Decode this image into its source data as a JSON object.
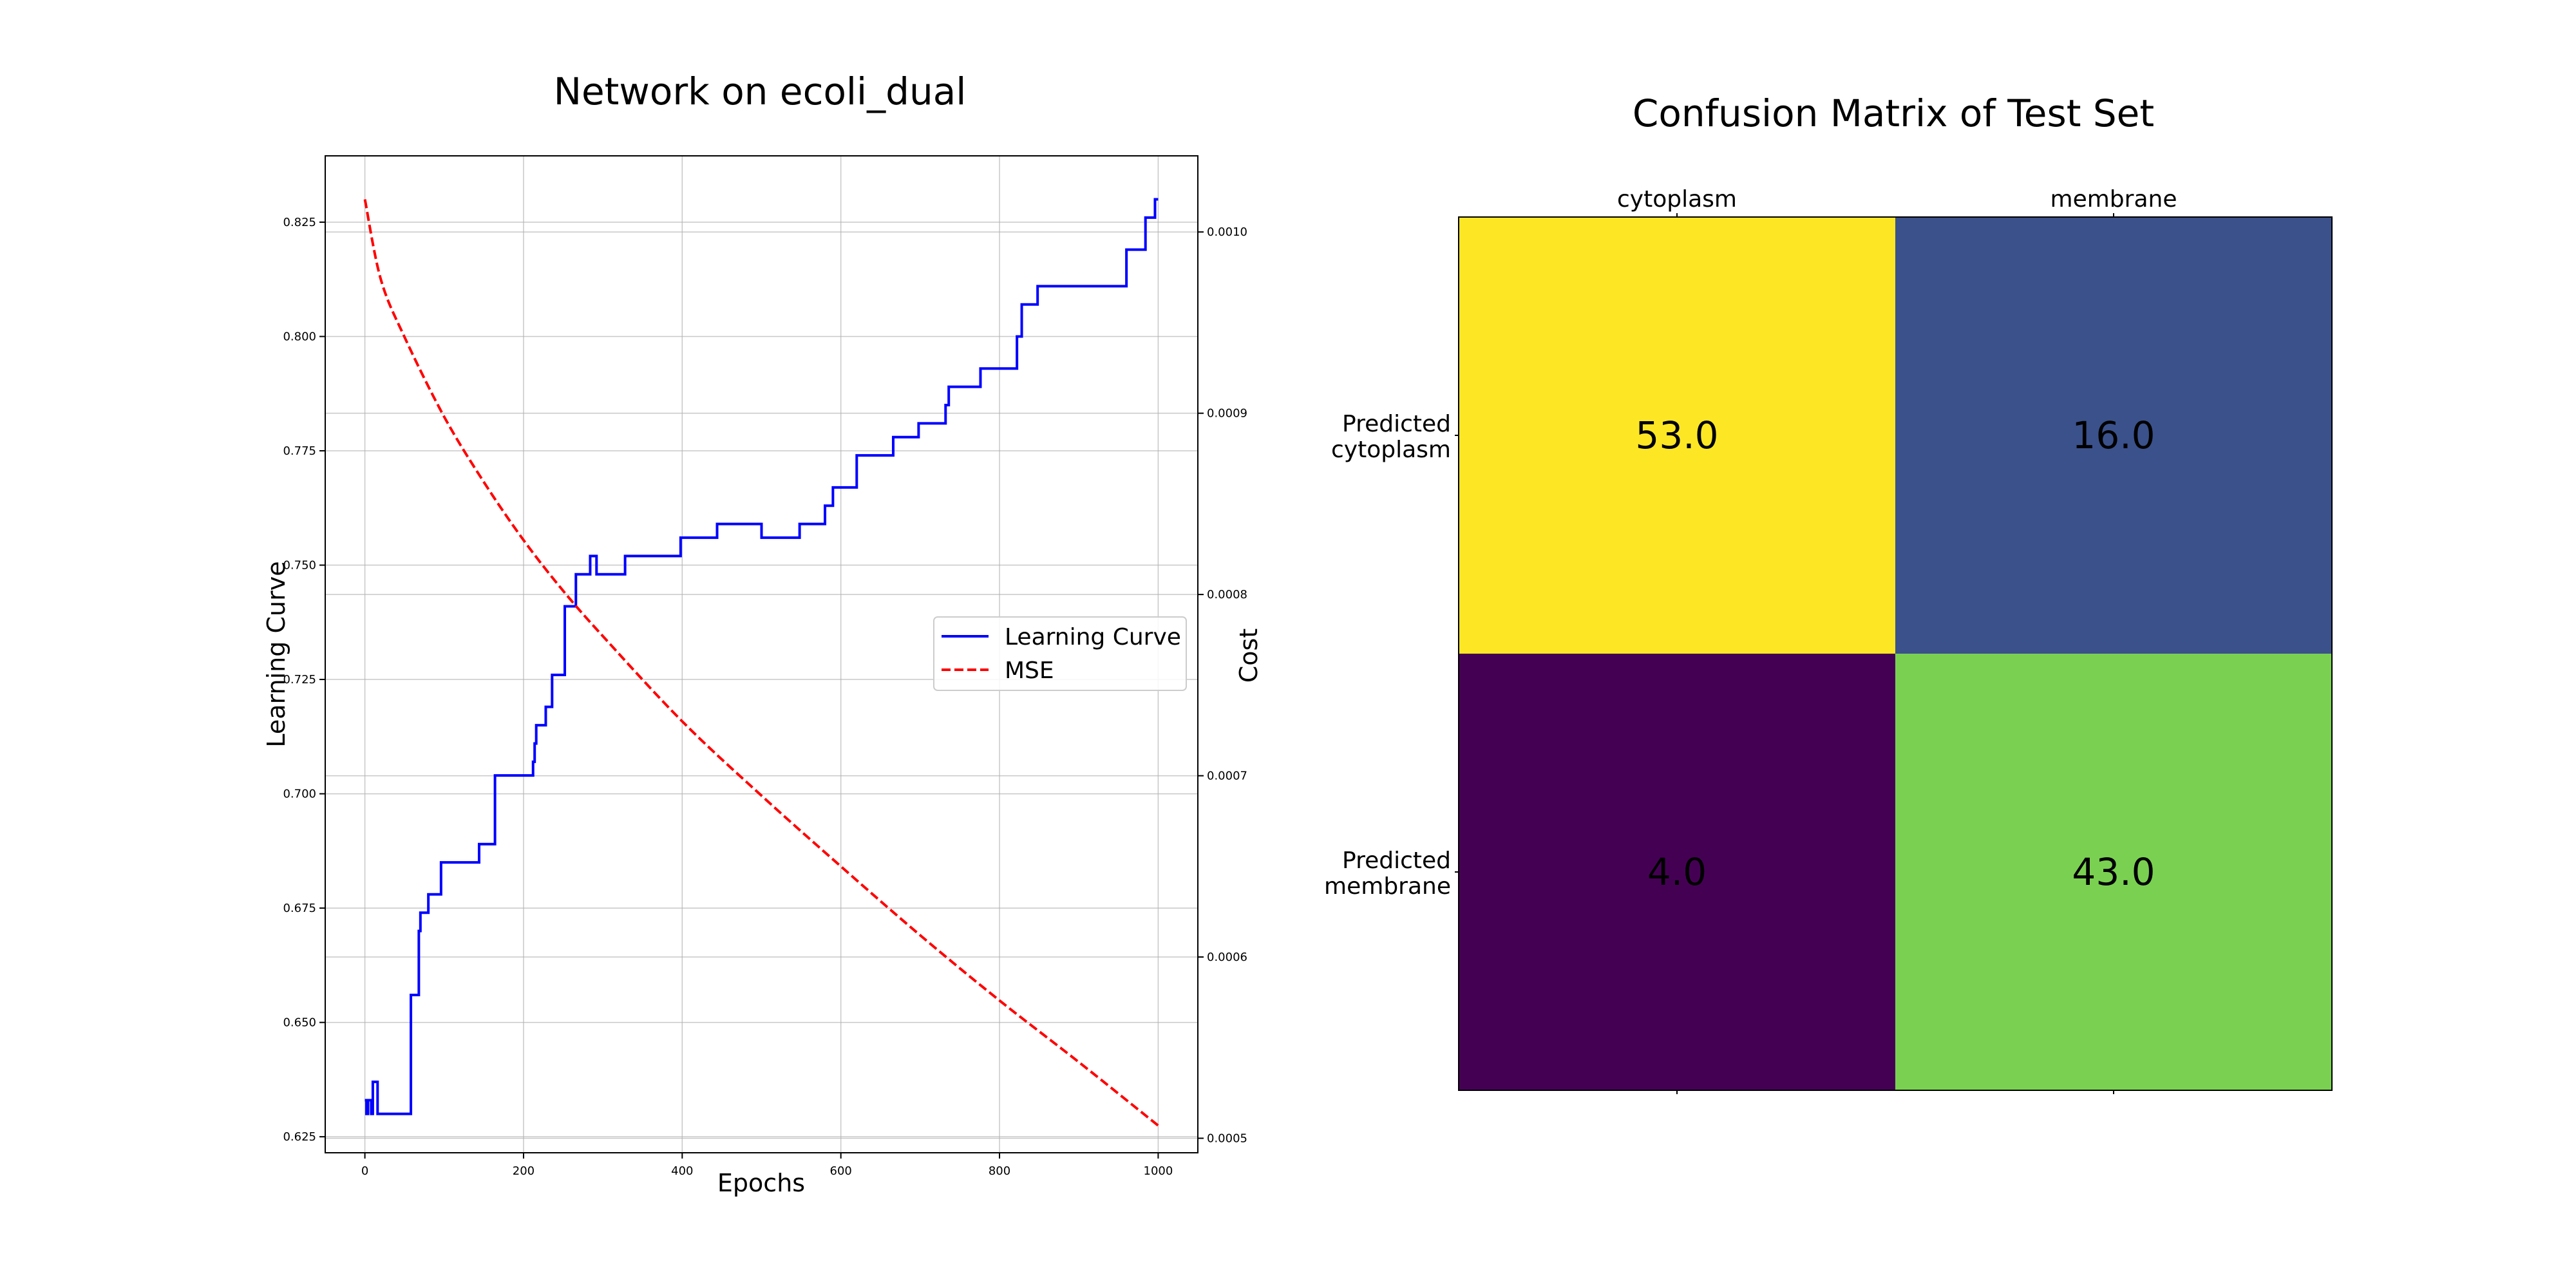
{
  "chart_data": [
    {
      "type": "line",
      "title": "Network on ecoli_dual",
      "xlabel": "Epochs",
      "ylabel": "Learning Curve",
      "y2label": "Cost",
      "xlim": [
        -50,
        1050
      ],
      "ylim": [
        0.6215,
        0.8395
      ],
      "y2lim": [
        0.000492,
        0.001042
      ],
      "xticks": [
        0,
        200,
        400,
        600,
        800,
        1000
      ],
      "yticks": [
        0.625,
        0.65,
        0.675,
        0.7,
        0.725,
        0.75,
        0.775,
        0.8,
        0.825
      ],
      "ytick_labels": [
        "0.625",
        "0.650",
        "0.675",
        "0.700",
        "0.725",
        "0.750",
        "0.775",
        "0.800",
        "0.825"
      ],
      "y2ticks": [
        0.0005,
        0.0006,
        0.0007,
        0.0008,
        0.0009,
        0.001
      ],
      "y2tick_labels": [
        "0.0005",
        "0.0006",
        "0.0007",
        "0.0008",
        "0.0009",
        "0.0010"
      ],
      "grid": true,
      "legend": "center-right",
      "series": [
        {
          "name": "Learning Curve",
          "axis": "left",
          "color": "#0000ff",
          "style": "solid",
          "step": true,
          "points": [
            [
              0,
              0.633
            ],
            [
              2,
              0.63
            ],
            [
              4,
              0.633
            ],
            [
              8,
              0.63
            ],
            [
              10,
              0.637
            ],
            [
              14,
              0.637
            ],
            [
              16,
              0.63
            ],
            [
              56,
              0.63
            ],
            [
              58,
              0.656
            ],
            [
              66,
              0.656
            ],
            [
              68,
              0.67
            ],
            [
              70,
              0.674
            ],
            [
              78,
              0.674
            ],
            [
              80,
              0.678
            ],
            [
              94,
              0.678
            ],
            [
              96,
              0.685
            ],
            [
              142,
              0.685
            ],
            [
              144,
              0.689
            ],
            [
              162,
              0.689
            ],
            [
              164,
              0.704
            ],
            [
              210,
              0.704
            ],
            [
              212,
              0.707
            ],
            [
              214,
              0.711
            ],
            [
              216,
              0.715
            ],
            [
              226,
              0.715
            ],
            [
              228,
              0.719
            ],
            [
              234,
              0.719
            ],
            [
              236,
              0.726
            ],
            [
              250,
              0.726
            ],
            [
              252,
              0.741
            ],
            [
              264,
              0.741
            ],
            [
              266,
              0.748
            ],
            [
              282,
              0.748
            ],
            [
              284,
              0.752
            ],
            [
              290,
              0.752
            ],
            [
              292,
              0.748
            ],
            [
              326,
              0.748
            ],
            [
              328,
              0.752
            ],
            [
              396,
              0.752
            ],
            [
              398,
              0.756
            ],
            [
              442,
              0.756
            ],
            [
              444,
              0.759
            ],
            [
              498,
              0.759
            ],
            [
              500,
              0.756
            ],
            [
              546,
              0.756
            ],
            [
              548,
              0.759
            ],
            [
              578,
              0.759
            ],
            [
              580,
              0.763
            ],
            [
              588,
              0.763
            ],
            [
              590,
              0.767
            ],
            [
              618,
              0.767
            ],
            [
              620,
              0.774
            ],
            [
              664,
              0.774
            ],
            [
              666,
              0.778
            ],
            [
              696,
              0.778
            ],
            [
              698,
              0.781
            ],
            [
              730,
              0.781
            ],
            [
              732,
              0.785
            ],
            [
              734,
              0.785
            ],
            [
              736,
              0.789
            ],
            [
              774,
              0.789
            ],
            [
              776,
              0.793
            ],
            [
              820,
              0.793
            ],
            [
              822,
              0.8
            ],
            [
              826,
              0.8
            ],
            [
              828,
              0.807
            ],
            [
              846,
              0.807
            ],
            [
              848,
              0.811
            ],
            [
              958,
              0.811
            ],
            [
              960,
              0.819
            ],
            [
              982,
              0.819
            ],
            [
              984,
              0.826
            ],
            [
              994,
              0.826
            ],
            [
              996,
              0.83
            ],
            [
              1000,
              0.83
            ]
          ]
        },
        {
          "name": "MSE",
          "axis": "right",
          "color": "#ff0000",
          "style": "dashed",
          "points": [
            [
              0,
              0.001018
            ],
            [
              20,
              0.000974
            ],
            [
              50,
              0.000942
            ],
            [
              100,
              0.000898
            ],
            [
              150,
              0.000862
            ],
            [
              200,
              0.00083
            ],
            [
              250,
              0.000802
            ],
            [
              300,
              0.000777
            ],
            [
              400,
              0.00073
            ],
            [
              500,
              0.000689
            ],
            [
              600,
              0.00065
            ],
            [
              700,
              0.000612
            ],
            [
              800,
              0.000576
            ],
            [
              900,
              0.000542
            ],
            [
              1000,
              0.000507
            ]
          ]
        }
      ]
    },
    {
      "type": "heatmap",
      "title": "Confusion Matrix of Test Set",
      "column_labels": [
        "cytoplasm",
        "membrane"
      ],
      "row_labels": [
        [
          "Predicted",
          "cytoplasm"
        ],
        [
          "Predicted",
          "membrane"
        ]
      ],
      "values": [
        [
          53.0,
          16.0
        ],
        [
          4.0,
          43.0
        ]
      ],
      "value_labels": [
        [
          "53.0",
          "16.0"
        ],
        [
          "4.0",
          "43.0"
        ]
      ],
      "colormap": "viridis",
      "colors": [
        [
          "#fde725",
          "#3b518b"
        ],
        [
          "#440154",
          "#7ad151"
        ]
      ]
    }
  ]
}
